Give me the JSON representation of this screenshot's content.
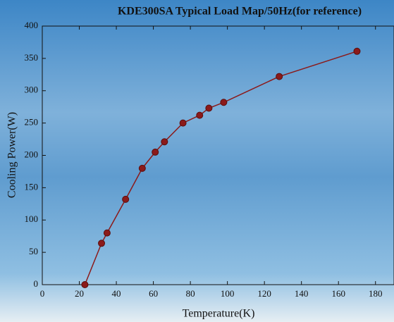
{
  "chart_data": {
    "type": "line",
    "title": "KDE300SA Typical Load Map/50Hz(for reference)",
    "x_label": "Temperature(K)",
    "y_label": "Cooling Power(W)",
    "x": [
      23,
      32,
      35,
      45,
      54,
      61,
      66,
      76,
      85,
      90,
      98,
      128,
      170
    ],
    "values": [
      0,
      64,
      80,
      132,
      180,
      205,
      221,
      250,
      262,
      273,
      282,
      322,
      361
    ],
    "color": "#8b1a1a",
    "xlim": [
      0,
      190
    ],
    "xticks": [
      0,
      20,
      40,
      60,
      80,
      100,
      120,
      140,
      160,
      180
    ],
    "ylim": [
      0,
      400
    ],
    "yticks": [
      0,
      50,
      100,
      150,
      200,
      250,
      300,
      350,
      400
    ]
  }
}
